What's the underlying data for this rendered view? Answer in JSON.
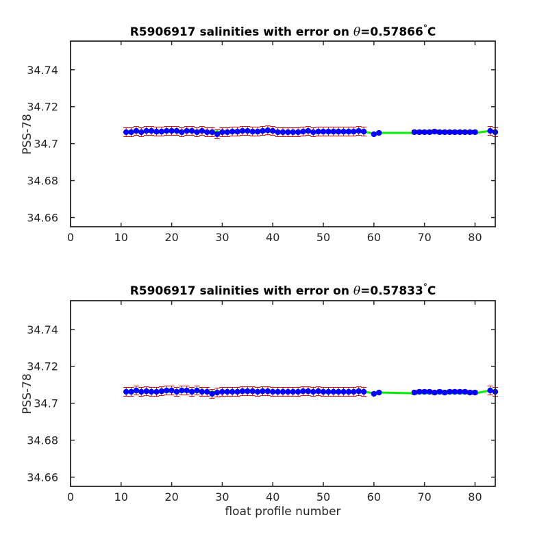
{
  "chart_data": [
    {
      "type": "line",
      "title_prefix": "R5906917 salinities with error on ",
      "title_theta": "θ",
      "title_suffix": "=0.57866",
      "title_degree": "°",
      "title_unit": "C",
      "xlabel": "",
      "ylabel": "PSS-78",
      "xlim": [
        0,
        84
      ],
      "ylim": [
        34.655,
        34.7555
      ],
      "xticks": [
        0,
        10,
        20,
        30,
        40,
        50,
        60,
        70,
        80
      ],
      "yticks": [
        34.66,
        34.68,
        34.7,
        34.72,
        34.74
      ],
      "ytick_labels": [
        "34.66",
        "34.68",
        "34.7",
        "34.72",
        "34.74"
      ],
      "colors": {
        "markers": "#0000ff",
        "errorbars": "#cc0000",
        "line": "#00ee00"
      },
      "series": [
        {
          "x": [
            11,
            12,
            13,
            14,
            15,
            16,
            17,
            18,
            19,
            20,
            21,
            22,
            23,
            24,
            25,
            26,
            27,
            28,
            29,
            30,
            31,
            32,
            33,
            34,
            35,
            36,
            37,
            38,
            39,
            40,
            41,
            42,
            43,
            44,
            45,
            46,
            47,
            48,
            49,
            50,
            51,
            52,
            53,
            54,
            55,
            56,
            57,
            58,
            60,
            61,
            68,
            69,
            70,
            71,
            72,
            73,
            74,
            75,
            76,
            77,
            78,
            79,
            80,
            83,
            84
          ],
          "y": [
            34.7062,
            34.7062,
            34.7069,
            34.7062,
            34.7069,
            34.7069,
            34.7065,
            34.7065,
            34.7069,
            34.7069,
            34.7069,
            34.7062,
            34.7069,
            34.7069,
            34.7062,
            34.7069,
            34.7062,
            34.7062,
            34.7051,
            34.7062,
            34.7062,
            34.7065,
            34.7065,
            34.7069,
            34.7069,
            34.7065,
            34.7065,
            34.7069,
            34.7072,
            34.7069,
            34.7062,
            34.7062,
            34.7062,
            34.7062,
            34.7062,
            34.7065,
            34.7069,
            34.7062,
            34.7065,
            34.7065,
            34.7065,
            34.7065,
            34.7065,
            34.7065,
            34.7065,
            34.7065,
            34.7069,
            34.7065,
            34.7051,
            34.7058,
            34.7062,
            34.7062,
            34.7062,
            34.7062,
            34.7065,
            34.7062,
            34.7062,
            34.7062,
            34.7062,
            34.7062,
            34.7062,
            34.7062,
            34.7062,
            34.7069,
            34.7062
          ],
          "err": [
            0.0024,
            0.0024,
            0.0024,
            0.0024,
            0.0024,
            0.0024,
            0.0024,
            0.0024,
            0.0024,
            0.0024,
            0.0024,
            0.0024,
            0.0024,
            0.0024,
            0.0024,
            0.0024,
            0.0024,
            0.0024,
            0.0024,
            0.0024,
            0.0024,
            0.0024,
            0.0024,
            0.0024,
            0.0024,
            0.0024,
            0.0024,
            0.0024,
            0.0024,
            0.0024,
            0.0024,
            0.0024,
            0.0024,
            0.0024,
            0.0024,
            0.0024,
            0.0024,
            0.0024,
            0.0024,
            0.0024,
            0.0024,
            0.0024,
            0.0024,
            0.0024,
            0.0024,
            0.0024,
            0.0024,
            0.0024,
            0.0006,
            0.0006,
            0.001,
            0.001,
            0.001,
            0.001,
            0.001,
            0.001,
            0.001,
            0.001,
            0.001,
            0.001,
            0.001,
            0.001,
            0.001,
            0.0024,
            0.0024
          ],
          "fit_x": [
            11,
            12,
            13,
            14,
            15,
            16,
            17,
            18,
            19,
            20,
            21,
            22,
            23,
            24,
            25,
            26,
            27,
            28,
            29,
            30,
            31,
            32,
            33,
            34,
            35,
            36,
            37,
            38,
            39,
            40,
            41,
            42,
            43,
            44,
            45,
            46,
            47,
            48,
            49,
            50,
            51,
            52,
            53,
            54,
            55,
            56,
            57,
            58,
            60,
            61,
            68,
            69,
            70,
            71,
            72,
            73,
            74,
            75,
            76,
            77,
            78,
            79,
            80,
            83,
            84
          ],
          "fit_y": [
            34.7065,
            34.7065,
            34.7065,
            34.7065,
            34.7065,
            34.7065,
            34.7065,
            34.7065,
            34.7065,
            34.7065,
            34.7065,
            34.7065,
            34.7065,
            34.7065,
            34.7065,
            34.7065,
            34.7065,
            34.7065,
            34.7065,
            34.7065,
            34.7065,
            34.7065,
            34.7065,
            34.7065,
            34.7065,
            34.7065,
            34.7065,
            34.7065,
            34.7065,
            34.7065,
            34.7065,
            34.7065,
            34.7065,
            34.7065,
            34.7065,
            34.7065,
            34.7065,
            34.7065,
            34.7065,
            34.7065,
            34.7065,
            34.7065,
            34.7065,
            34.7065,
            34.7065,
            34.7065,
            34.7065,
            34.7065,
            34.7054,
            34.7058,
            34.7058,
            34.7058,
            34.7058,
            34.7058,
            34.7058,
            34.7058,
            34.7058,
            34.7058,
            34.7058,
            34.7058,
            34.7058,
            34.7058,
            34.7058,
            34.7069,
            34.7069
          ]
        }
      ]
    },
    {
      "type": "line",
      "title_prefix": "R5906917 salinities with error on ",
      "title_theta": "θ",
      "title_suffix": "=0.57833",
      "title_degree": "°",
      "title_unit": "C",
      "xlabel": "float profile number",
      "ylabel": "PSS-78",
      "xlim": [
        0,
        84
      ],
      "ylim": [
        34.655,
        34.7555
      ],
      "xticks": [
        0,
        10,
        20,
        30,
        40,
        50,
        60,
        70,
        80
      ],
      "yticks": [
        34.66,
        34.68,
        34.7,
        34.72,
        34.74
      ],
      "ytick_labels": [
        "34.66",
        "34.68",
        "34.7",
        "34.72",
        "34.74"
      ],
      "colors": {
        "markers": "#0000ff",
        "errorbars": "#cc0000",
        "line": "#00ee00"
      },
      "series": [
        {
          "x": [
            11,
            12,
            13,
            14,
            15,
            16,
            17,
            18,
            19,
            20,
            21,
            22,
            23,
            24,
            25,
            26,
            27,
            28,
            29,
            30,
            31,
            32,
            33,
            34,
            35,
            36,
            37,
            38,
            39,
            40,
            41,
            42,
            43,
            44,
            45,
            46,
            47,
            48,
            49,
            50,
            51,
            52,
            53,
            54,
            55,
            56,
            57,
            58,
            60,
            61,
            68,
            69,
            70,
            71,
            72,
            73,
            74,
            75,
            76,
            77,
            78,
            79,
            80,
            83,
            84
          ],
          "y": [
            34.7062,
            34.7062,
            34.7069,
            34.7062,
            34.7065,
            34.7062,
            34.7062,
            34.7065,
            34.7069,
            34.7069,
            34.7062,
            34.7069,
            34.7069,
            34.7062,
            34.7069,
            34.7062,
            34.7062,
            34.7051,
            34.7058,
            34.7062,
            34.7062,
            34.7062,
            34.7062,
            34.7065,
            34.7065,
            34.7065,
            34.7062,
            34.7065,
            34.7065,
            34.7062,
            34.7062,
            34.7062,
            34.7062,
            34.7062,
            34.7062,
            34.7065,
            34.7065,
            34.7062,
            34.7065,
            34.7062,
            34.7062,
            34.7062,
            34.7062,
            34.7062,
            34.7062,
            34.7062,
            34.7065,
            34.7062,
            34.7051,
            34.7058,
            34.7058,
            34.7062,
            34.7062,
            34.7062,
            34.7058,
            34.7062,
            34.7058,
            34.7062,
            34.7062,
            34.7062,
            34.7062,
            34.7058,
            34.7058,
            34.7069,
            34.7062
          ],
          "err": [
            0.0024,
            0.0024,
            0.0024,
            0.0024,
            0.0024,
            0.0024,
            0.0024,
            0.0024,
            0.0024,
            0.0024,
            0.0024,
            0.0024,
            0.0024,
            0.0024,
            0.0024,
            0.0024,
            0.0024,
            0.0024,
            0.0024,
            0.0024,
            0.0024,
            0.0024,
            0.0024,
            0.0024,
            0.0024,
            0.0024,
            0.0024,
            0.0024,
            0.0024,
            0.0024,
            0.0024,
            0.0024,
            0.0024,
            0.0024,
            0.0024,
            0.0024,
            0.0024,
            0.0024,
            0.0024,
            0.0024,
            0.0024,
            0.0024,
            0.0024,
            0.0024,
            0.0024,
            0.0024,
            0.0024,
            0.0024,
            0.0006,
            0.0006,
            0.001,
            0.001,
            0.001,
            0.001,
            0.001,
            0.001,
            0.001,
            0.001,
            0.001,
            0.001,
            0.001,
            0.001,
            0.001,
            0.0024,
            0.0024
          ],
          "fit_x": [
            11,
            12,
            13,
            14,
            15,
            16,
            17,
            18,
            19,
            20,
            21,
            22,
            23,
            24,
            25,
            26,
            27,
            28,
            29,
            30,
            31,
            32,
            33,
            34,
            35,
            36,
            37,
            38,
            39,
            40,
            41,
            42,
            43,
            44,
            45,
            46,
            47,
            48,
            49,
            50,
            51,
            52,
            53,
            54,
            55,
            56,
            57,
            58,
            60,
            61,
            68,
            69,
            70,
            71,
            72,
            73,
            74,
            75,
            76,
            77,
            78,
            79,
            80,
            83,
            84
          ],
          "fit_y": [
            34.7062,
            34.7062,
            34.7062,
            34.7062,
            34.7062,
            34.7062,
            34.7062,
            34.7062,
            34.7062,
            34.7062,
            34.7062,
            34.7062,
            34.7062,
            34.7062,
            34.7062,
            34.7062,
            34.7062,
            34.7062,
            34.7062,
            34.7062,
            34.7062,
            34.7062,
            34.7062,
            34.7062,
            34.7062,
            34.7062,
            34.7062,
            34.7062,
            34.7062,
            34.7062,
            34.7062,
            34.7062,
            34.7062,
            34.7062,
            34.7062,
            34.7062,
            34.7062,
            34.7062,
            34.7062,
            34.7062,
            34.7062,
            34.7062,
            34.7062,
            34.7062,
            34.7062,
            34.7062,
            34.7062,
            34.7062,
            34.7054,
            34.7058,
            34.7054,
            34.7054,
            34.7054,
            34.7054,
            34.7054,
            34.7054,
            34.7054,
            34.7054,
            34.7054,
            34.7054,
            34.7054,
            34.7054,
            34.7054,
            34.7069,
            34.7069
          ]
        }
      ]
    }
  ]
}
